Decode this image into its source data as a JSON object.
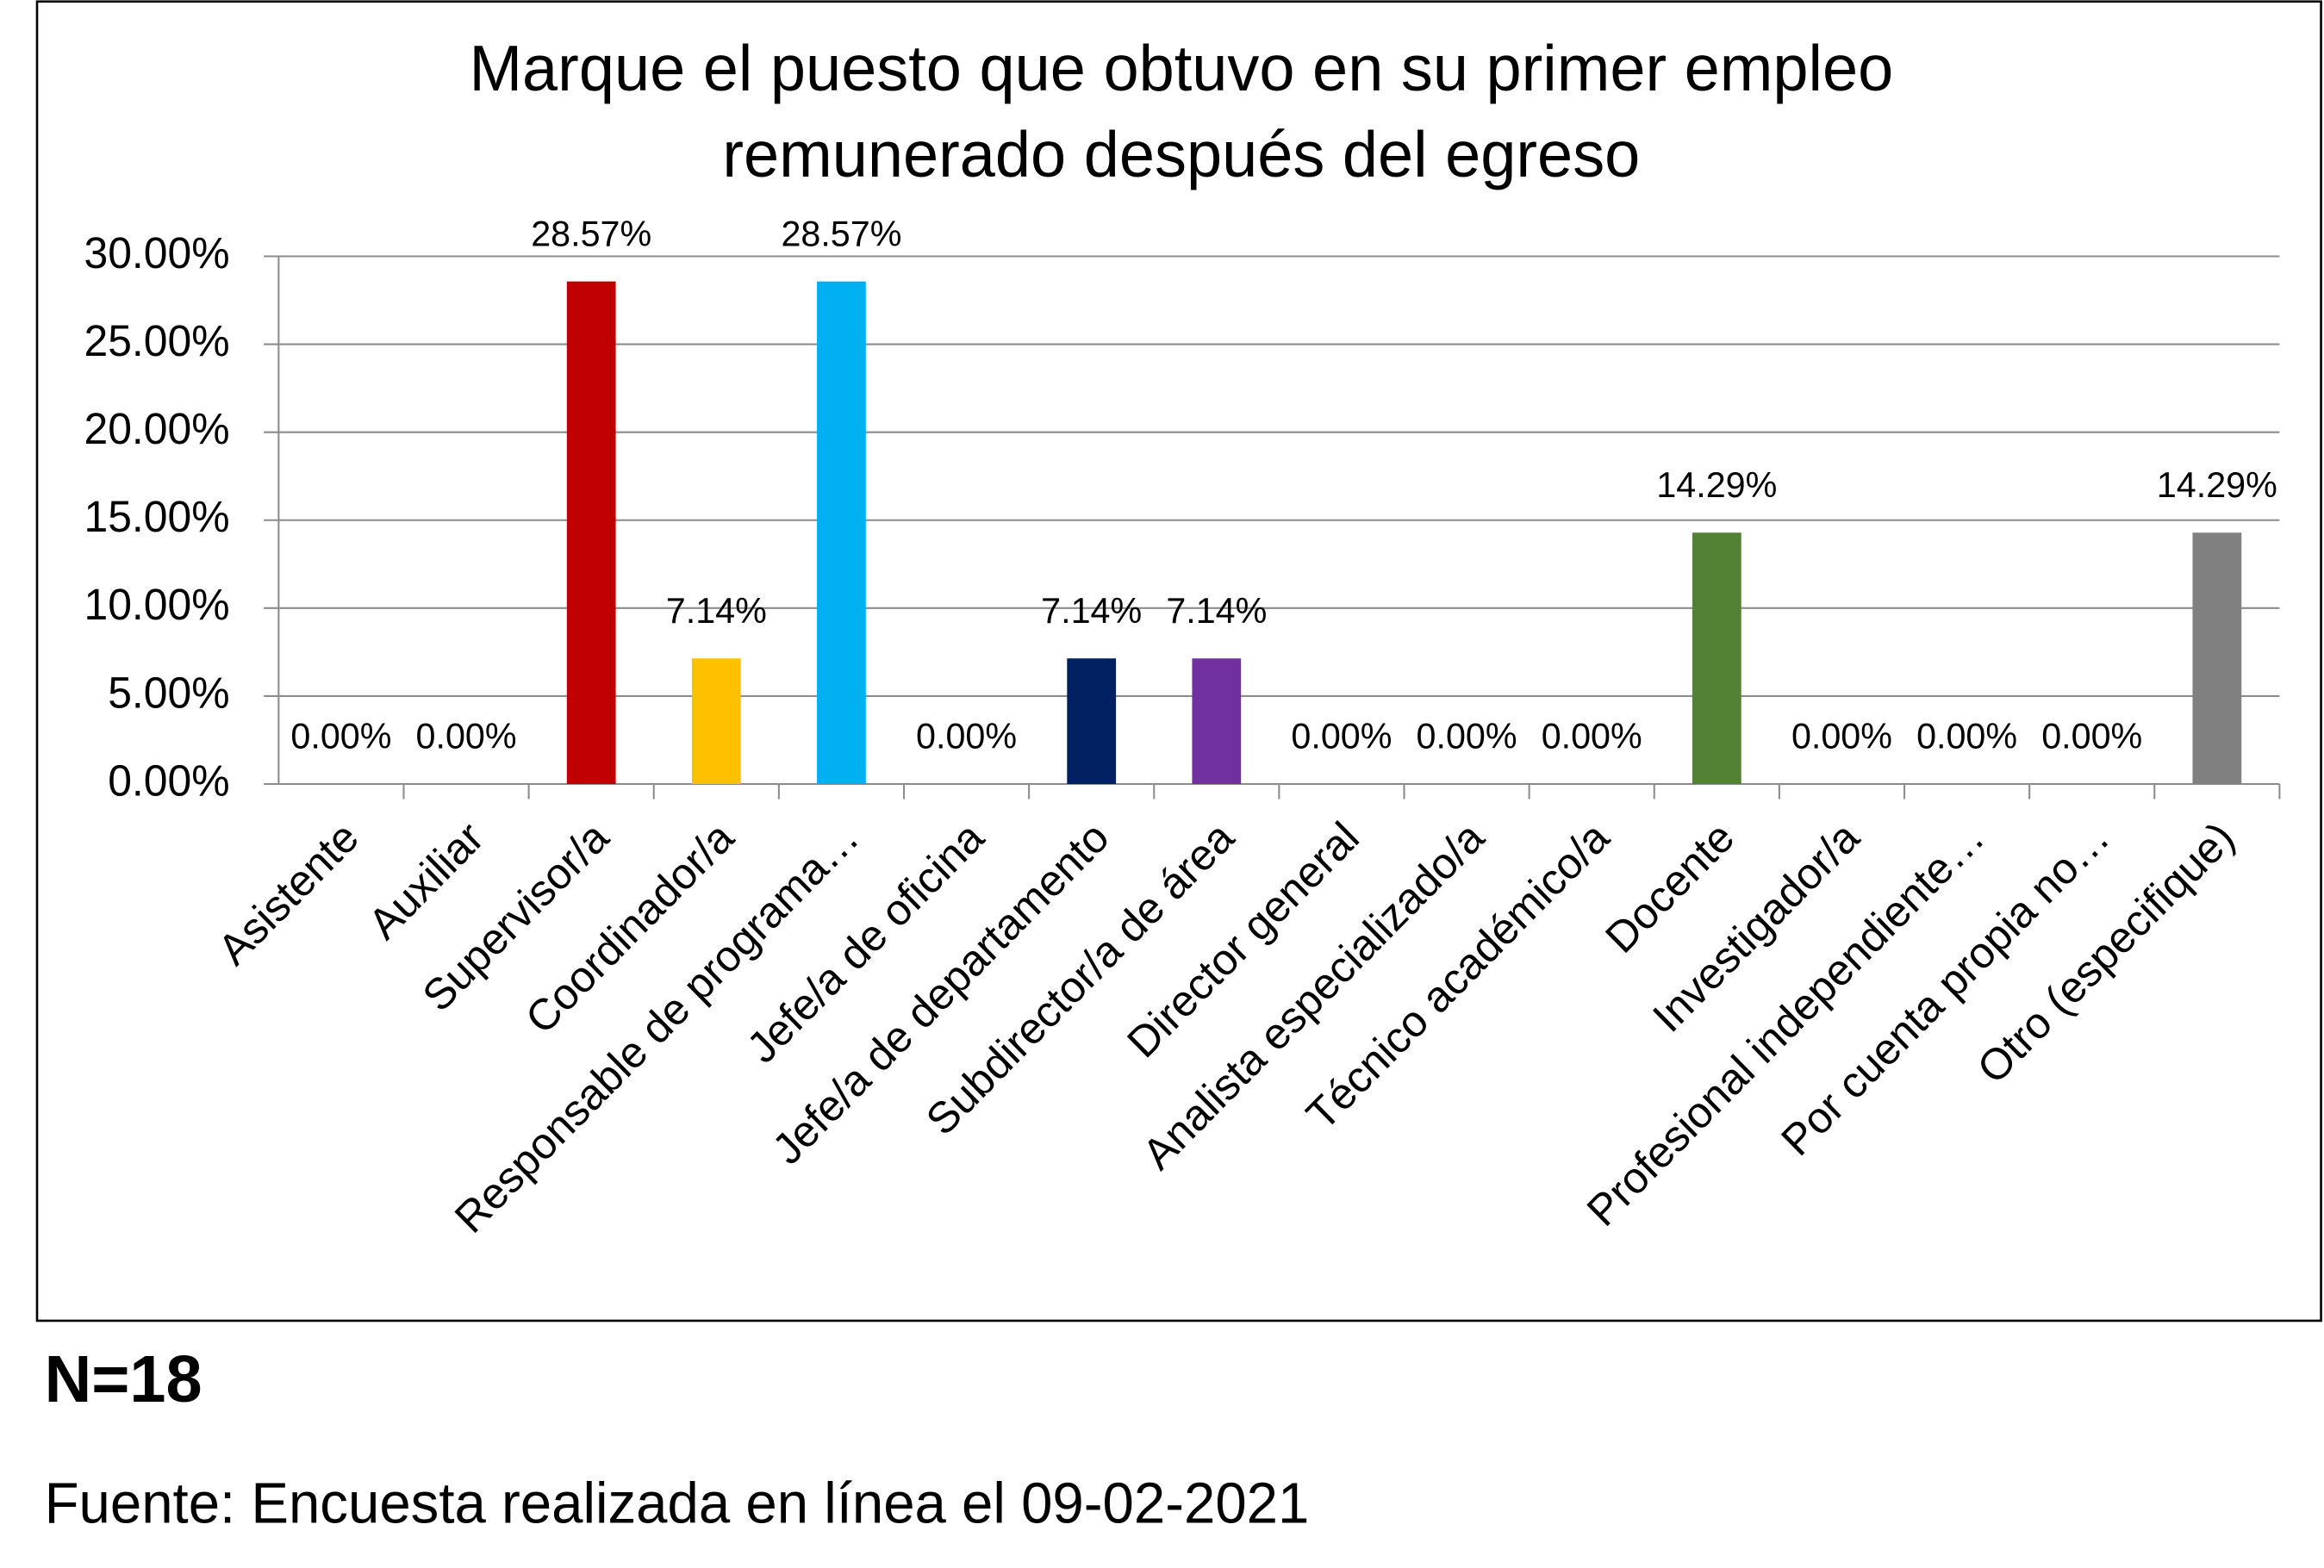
{
  "chart_data": {
    "type": "bar",
    "title": "Marque el puesto que obtuvo en su primer empleo remunerado después del egreso",
    "categories": [
      "Asistente",
      "Auxiliar",
      "Supervisor/a",
      "Coordinador/a",
      "Responsable de programa…",
      "Jefe/a de oficina",
      "Jefe/a de departamento",
      "Subdirector/a de área",
      "Director general",
      "Analista especializado/a",
      "Técnico académico/a",
      "Docente",
      "Investigador/a",
      "Profesional independiente…",
      "Por cuenta propia no…",
      "Otro (especifique)"
    ],
    "values": [
      0,
      0,
      28.57,
      7.14,
      28.57,
      0,
      7.14,
      7.14,
      0,
      0,
      0,
      14.29,
      0,
      0,
      0,
      14.29
    ],
    "value_labels": [
      "0.00%",
      "0.00%",
      "28.57%",
      "7.14%",
      "28.57%",
      "0.00%",
      "7.14%",
      "7.14%",
      "0.00%",
      "0.00%",
      "0.00%",
      "14.29%",
      "0.00%",
      "0.00%",
      "0.00%",
      "14.29%"
    ],
    "colors": [
      "#4f81bd",
      "#4f81bd",
      "#c00000",
      "#ffc000",
      "#00b0f0",
      "#4f81bd",
      "#002060",
      "#7030a0",
      "#4f81bd",
      "#4f81bd",
      "#4f81bd",
      "#548235",
      "#4f81bd",
      "#4f81bd",
      "#4f81bd",
      "#808080"
    ],
    "ylim": [
      0,
      30
    ],
    "yticks": [
      {
        "value": 0,
        "label": "0.00%"
      },
      {
        "value": 5,
        "label": "5.00%"
      },
      {
        "value": 10,
        "label": "10.00%"
      },
      {
        "value": 15,
        "label": "15.00%"
      },
      {
        "value": 20,
        "label": "20.00%"
      },
      {
        "value": 25,
        "label": "25.00%"
      },
      {
        "value": 30,
        "label": "30.00%"
      }
    ],
    "grid": true
  },
  "footer": {
    "n": "N=18",
    "source": "Fuente: Encuesta realizada en línea el 09-02-2021"
  }
}
